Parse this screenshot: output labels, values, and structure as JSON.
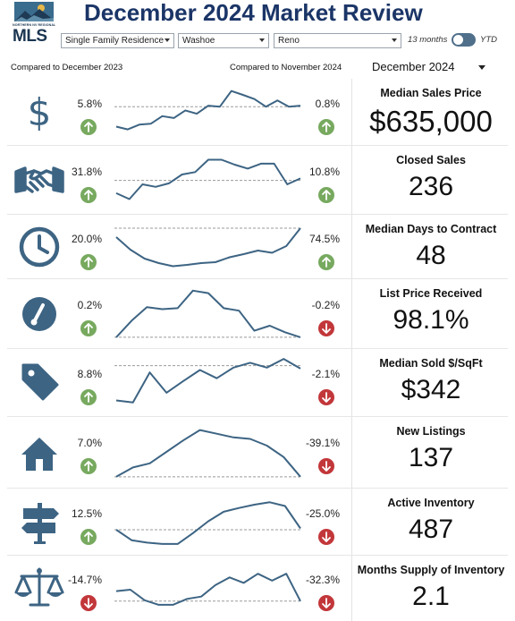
{
  "header": {
    "logo": {
      "org_text": "NORTHERN NV REGIONAL",
      "mls_text": "MLS"
    },
    "title": "December 2024 Market Review",
    "filters": [
      {
        "value": "Single Family Residence"
      },
      {
        "value": "Washoe"
      },
      {
        "value": "Reno"
      }
    ],
    "toggle": {
      "left_label": "13 months",
      "right_label": "YTD"
    },
    "compare_prev_year": "Compared to December 2023",
    "compare_prev_month": "Compared to November 2024",
    "period": {
      "selected": "December 2024"
    }
  },
  "colors": {
    "accent": "#1b3567",
    "spark": "#3d6483",
    "up": "#77a95f",
    "down": "#c2373a"
  },
  "metrics": [
    {
      "icon": "dollar-icon",
      "name": "Median Sales Price",
      "value": "$635,000",
      "yoy": "5.8%",
      "yoy_dir": "up",
      "mom": "0.8%",
      "mom_dir": "up",
      "spark": [
        0.18,
        0.12,
        0.22,
        0.24,
        0.4,
        0.36,
        0.52,
        0.45,
        0.62,
        0.6,
        0.93,
        0.85,
        0.76,
        0.6,
        0.73,
        0.6,
        0.62
      ],
      "baseline": 0.6
    },
    {
      "icon": "handshake-icon",
      "name": "Closed Sales",
      "value": "236",
      "yoy": "31.8%",
      "yoy_dir": "up",
      "mom": "10.8%",
      "mom_dir": "up",
      "spark": [
        0.22,
        0.1,
        0.4,
        0.35,
        0.42,
        0.6,
        0.65,
        0.9,
        0.9,
        0.8,
        0.72,
        0.82,
        0.82,
        0.4,
        0.52
      ],
      "baseline": 0.48
    },
    {
      "icon": "clock-icon",
      "name": "Median Days to Contract",
      "value": "48",
      "yoy": "20.0%",
      "yoy_dir": "up",
      "mom": "74.5%",
      "mom_dir": "up",
      "spark": [
        0.7,
        0.42,
        0.22,
        0.12,
        0.05,
        0.08,
        0.12,
        0.14,
        0.25,
        0.32,
        0.4,
        0.35,
        0.5,
        0.9
      ],
      "baseline": 0.9
    },
    {
      "icon": "gauge-icon",
      "name": "List Price Received",
      "value": "98.1%",
      "yoy": "0.2%",
      "yoy_dir": "up",
      "mom": "-0.2%",
      "mom_dir": "down",
      "spark": [
        0.02,
        0.35,
        0.62,
        0.58,
        0.6,
        0.95,
        0.9,
        0.6,
        0.55,
        0.15,
        0.25,
        0.12,
        0.02
      ],
      "baseline": 0.02
    },
    {
      "icon": "tag-icon",
      "name": "Median Sold $/SqFt",
      "value": "$342",
      "yoy": "8.8%",
      "yoy_dir": "up",
      "mom": "-2.1%",
      "mom_dir": "down",
      "spark": [
        0.12,
        0.08,
        0.7,
        0.28,
        0.52,
        0.75,
        0.58,
        0.8,
        0.9,
        0.8,
        0.98,
        0.78
      ],
      "baseline": 0.84
    },
    {
      "icon": "house-icon",
      "name": "New Listings",
      "value": "137",
      "yoy": "7.0%",
      "yoy_dir": "up",
      "mom": "-39.1%",
      "mom_dir": "down",
      "spark": [
        0.02,
        0.2,
        0.28,
        0.5,
        0.72,
        0.92,
        0.85,
        0.78,
        0.75,
        0.62,
        0.4,
        0.02
      ],
      "baseline": 0.02
    },
    {
      "icon": "signpost-icon",
      "name": "Active Inventory",
      "value": "487",
      "yoy": "12.5%",
      "yoy_dir": "up",
      "mom": "-25.0%",
      "mom_dir": "down",
      "spark": [
        0.32,
        0.1,
        0.05,
        0.02,
        0.02,
        0.25,
        0.5,
        0.7,
        0.78,
        0.85,
        0.9,
        0.82,
        0.35
      ],
      "baseline": 0.32
    },
    {
      "icon": "scales-icon",
      "name": "Months Supply of Inventory",
      "value": "2.1",
      "yoy": "-14.7%",
      "yoy_dir": "down",
      "mom": "-32.3%",
      "mom_dir": "down",
      "spark": [
        0.42,
        0.45,
        0.22,
        0.12,
        0.12,
        0.25,
        0.3,
        0.55,
        0.72,
        0.6,
        0.8,
        0.65,
        0.8,
        0.2
      ],
      "baseline": 0.2
    }
  ]
}
